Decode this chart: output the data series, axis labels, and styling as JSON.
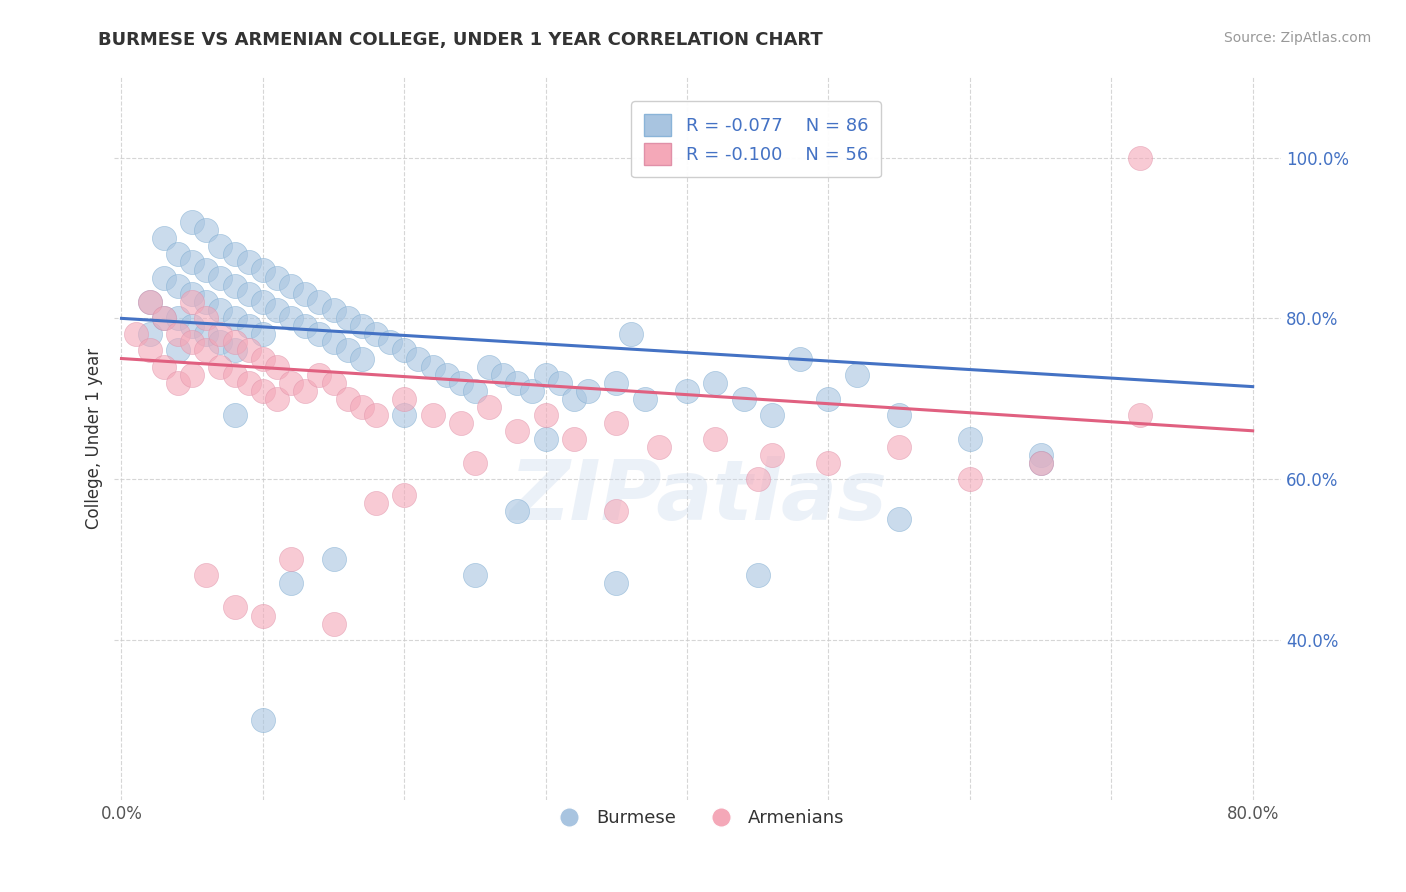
{
  "title": "BURMESE VS ARMENIAN COLLEGE, UNDER 1 YEAR CORRELATION CHART",
  "source": "Source: ZipAtlas.com",
  "ylabel": "College, Under 1 year",
  "xlim": [
    -0.005,
    0.82
  ],
  "ylim": [
    0.2,
    1.1
  ],
  "xticks": [
    0.0,
    0.1,
    0.2,
    0.3,
    0.4,
    0.5,
    0.6,
    0.7,
    0.8
  ],
  "xticklabels": [
    "0.0%",
    "",
    "",
    "",
    "",
    "",
    "",
    "",
    "80.0%"
  ],
  "yticks": [
    0.4,
    0.6,
    0.8,
    1.0
  ],
  "yticklabels": [
    "40.0%",
    "60.0%",
    "80.0%",
    "100.0%"
  ],
  "blue_R": "-0.077",
  "blue_N": "86",
  "pink_R": "-0.100",
  "pink_N": "56",
  "blue_color": "#A8C4E0",
  "pink_color": "#F4A8B8",
  "blue_line_color": "#4472C4",
  "pink_line_color": "#E06080",
  "legend_label_blue": "Burmese",
  "legend_label_pink": "Armenians",
  "background_color": "#FFFFFF",
  "watermark": "ZIPatlas",
  "blue_trend_y_start": 0.8,
  "blue_trend_y_end": 0.715,
  "pink_trend_y_start": 0.75,
  "pink_trend_y_end": 0.66,
  "blue_x": [
    0.02,
    0.02,
    0.03,
    0.03,
    0.03,
    0.04,
    0.04,
    0.04,
    0.04,
    0.05,
    0.05,
    0.05,
    0.05,
    0.06,
    0.06,
    0.06,
    0.06,
    0.07,
    0.07,
    0.07,
    0.07,
    0.08,
    0.08,
    0.08,
    0.08,
    0.09,
    0.09,
    0.09,
    0.1,
    0.1,
    0.1,
    0.11,
    0.11,
    0.12,
    0.12,
    0.13,
    0.13,
    0.14,
    0.14,
    0.15,
    0.15,
    0.16,
    0.16,
    0.17,
    0.17,
    0.18,
    0.19,
    0.2,
    0.21,
    0.22,
    0.23,
    0.24,
    0.25,
    0.26,
    0.27,
    0.28,
    0.29,
    0.3,
    0.31,
    0.32,
    0.33,
    0.35,
    0.37,
    0.4,
    0.44,
    0.46,
    0.5,
    0.55,
    0.6,
    0.65,
    0.1,
    0.3,
    0.48,
    0.52,
    0.42,
    0.36,
    0.28,
    0.2,
    0.15,
    0.08,
    0.12,
    0.25,
    0.35,
    0.45,
    0.55,
    0.65
  ],
  "blue_y": [
    0.82,
    0.78,
    0.9,
    0.85,
    0.8,
    0.88,
    0.84,
    0.8,
    0.76,
    0.92,
    0.87,
    0.83,
    0.79,
    0.91,
    0.86,
    0.82,
    0.78,
    0.89,
    0.85,
    0.81,
    0.77,
    0.88,
    0.84,
    0.8,
    0.76,
    0.87,
    0.83,
    0.79,
    0.86,
    0.82,
    0.78,
    0.85,
    0.81,
    0.84,
    0.8,
    0.83,
    0.79,
    0.82,
    0.78,
    0.81,
    0.77,
    0.8,
    0.76,
    0.79,
    0.75,
    0.78,
    0.77,
    0.76,
    0.75,
    0.74,
    0.73,
    0.72,
    0.71,
    0.74,
    0.73,
    0.72,
    0.71,
    0.73,
    0.72,
    0.7,
    0.71,
    0.72,
    0.7,
    0.71,
    0.7,
    0.68,
    0.7,
    0.68,
    0.65,
    0.63,
    0.3,
    0.65,
    0.75,
    0.73,
    0.72,
    0.78,
    0.56,
    0.68,
    0.5,
    0.68,
    0.47,
    0.48,
    0.47,
    0.48,
    0.55,
    0.62
  ],
  "pink_x": [
    0.01,
    0.02,
    0.02,
    0.03,
    0.03,
    0.04,
    0.04,
    0.05,
    0.05,
    0.05,
    0.06,
    0.06,
    0.07,
    0.07,
    0.08,
    0.08,
    0.09,
    0.09,
    0.1,
    0.1,
    0.11,
    0.11,
    0.12,
    0.13,
    0.14,
    0.15,
    0.16,
    0.17,
    0.18,
    0.2,
    0.22,
    0.24,
    0.26,
    0.28,
    0.3,
    0.32,
    0.35,
    0.38,
    0.42,
    0.46,
    0.5,
    0.55,
    0.6,
    0.65,
    0.72,
    0.2,
    0.18,
    0.25,
    0.35,
    0.45,
    0.06,
    0.08,
    0.1,
    0.12,
    0.15,
    0.72
  ],
  "pink_y": [
    0.78,
    0.82,
    0.76,
    0.8,
    0.74,
    0.78,
    0.72,
    0.82,
    0.77,
    0.73,
    0.8,
    0.76,
    0.78,
    0.74,
    0.77,
    0.73,
    0.76,
    0.72,
    0.75,
    0.71,
    0.74,
    0.7,
    0.72,
    0.71,
    0.73,
    0.72,
    0.7,
    0.69,
    0.68,
    0.7,
    0.68,
    0.67,
    0.69,
    0.66,
    0.68,
    0.65,
    0.67,
    0.64,
    0.65,
    0.63,
    0.62,
    0.64,
    0.6,
    0.62,
    0.68,
    0.58,
    0.57,
    0.62,
    0.56,
    0.6,
    0.48,
    0.44,
    0.43,
    0.5,
    0.42,
    1.0
  ]
}
